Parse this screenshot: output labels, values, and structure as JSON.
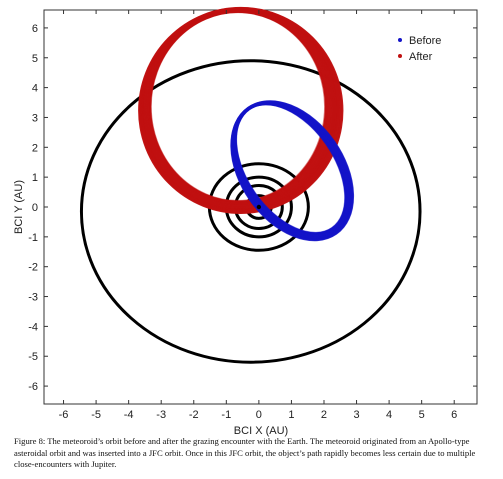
{
  "chart_data": {
    "type": "scatter",
    "title": "",
    "xlabel": "BCI X (AU)",
    "ylabel": "BCI Y (AU)",
    "xlim": [
      -6.6,
      6.7
    ],
    "ylim": [
      -6.6,
      6.6
    ],
    "xticks": [
      -6,
      -5,
      -4,
      -3,
      -2,
      -1,
      0,
      1,
      2,
      3,
      4,
      5,
      6
    ],
    "yticks": [
      -6,
      -5,
      -4,
      -3,
      -2,
      -1,
      0,
      1,
      2,
      3,
      4,
      5,
      6
    ],
    "grid": false,
    "legend_position": "top-right",
    "series": [
      {
        "name": "Before",
        "color": "#1414c8",
        "description_orbit": {
          "center": [
            1.0,
            1.25
          ],
          "a": 1.45,
          "b": 2.5,
          "rotation_deg": 35,
          "spread": 0.12,
          "clones": 18
        }
      },
      {
        "name": "After",
        "color": "#c01010",
        "description_orbit": {
          "center": [
            -0.6,
            3.3
          ],
          "a": 2.9,
          "b": 3.3,
          "rotation_deg": 0,
          "spread": 0.22,
          "clones": 22
        }
      }
    ],
    "planet_orbits": [
      {
        "center": [
          0,
          0
        ],
        "rx": 0.38,
        "ry": 0.38
      },
      {
        "center": [
          0,
          0
        ],
        "rx": 0.72,
        "ry": 0.72
      },
      {
        "center": [
          0,
          0
        ],
        "rx": 1.0,
        "ry": 1.0
      },
      {
        "center": [
          0,
          0
        ],
        "rx": 1.52,
        "ry": 1.45
      },
      {
        "center": [
          -0.25,
          -0.15
        ],
        "rx": 5.2,
        "ry": 5.05
      }
    ]
  },
  "caption": "Figure 8: The meteoroid’s orbit before and after the grazing encounter with the Earth. The meteoroid originated from an Apollo-type asteroidal orbit and was inserted into a JFC orbit. Once in this JFC orbit, the object’s path rapidly becomes less certain due to multiple close-encounters with Jupiter."
}
